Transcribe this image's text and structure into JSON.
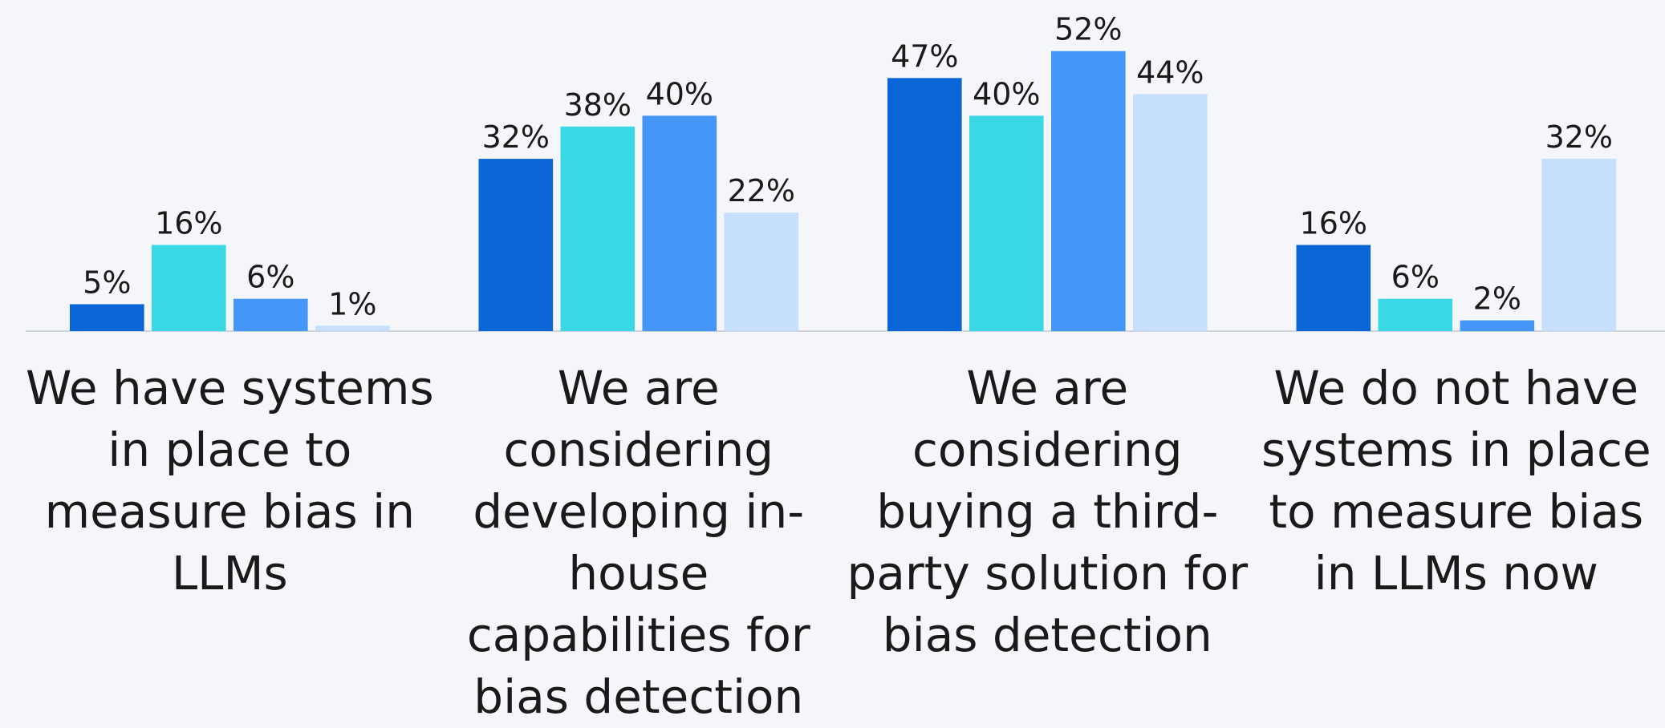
{
  "chart_data": {
    "type": "bar",
    "categories": [
      "We have systems in place to measure bias in LLMs",
      "We are considering developing in-house capabilities for bias detection",
      "We are considering buying a third-party solution for bias detection",
      "We do not have systems in place to measure bias in LLMs now"
    ],
    "series": [
      {
        "color": "#0a66d6",
        "values": [
          5,
          32,
          47,
          16
        ],
        "value_labels": [
          "5%",
          "32%",
          "47%",
          "16%"
        ]
      },
      {
        "color": "#3ad8e4",
        "values": [
          16,
          38,
          40,
          6
        ],
        "value_labels": [
          "16%",
          "38%",
          "40%",
          "6%"
        ]
      },
      {
        "color": "#4597f7",
        "values": [
          6,
          40,
          52,
          2
        ],
        "value_labels": [
          "6%",
          "40%",
          "52%",
          "2%"
        ]
      },
      {
        "color": "#c5dffc",
        "values": [
          1,
          22,
          44,
          32
        ],
        "value_labels": [
          "1%",
          "22%",
          "44%",
          "32%"
        ]
      }
    ],
    "ylim": [
      0,
      60
    ]
  }
}
